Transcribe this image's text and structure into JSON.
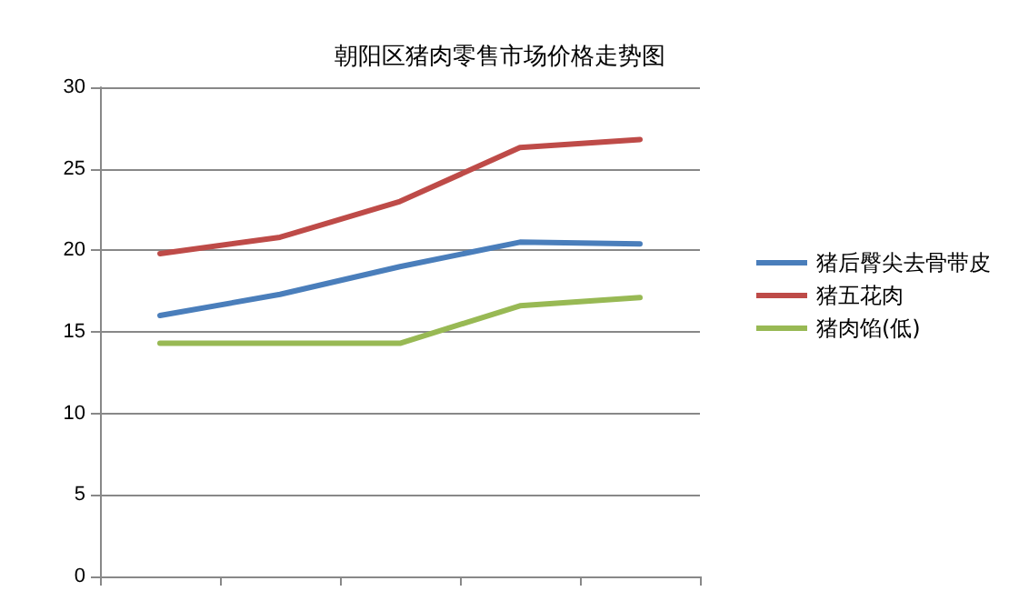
{
  "chart_data": {
    "type": "line",
    "title": "朝阳区猪肉零售市场价格走势图",
    "categories": [
      null,
      null,
      null,
      null,
      null
    ],
    "series": [
      {
        "name": "猪后臀尖去骨带皮",
        "color": "#4a7ebb",
        "values": [
          16,
          17.3,
          19,
          20.5,
          20.4
        ]
      },
      {
        "name": "猪五花肉",
        "color": "#be4b48",
        "values": [
          19.8,
          20.8,
          23,
          26.3,
          26.8
        ]
      },
      {
        "name": "猪肉馅(低)",
        "color": "#98b954",
        "values": [
          14.3,
          14.3,
          14.3,
          16.6,
          17.1
        ]
      }
    ],
    "ylim": [
      0,
      30
    ],
    "yticks": [
      0,
      5,
      10,
      15,
      20,
      25,
      30
    ],
    "grid": "y",
    "legend": "right",
    "marker": "none",
    "line_style": "solid"
  }
}
